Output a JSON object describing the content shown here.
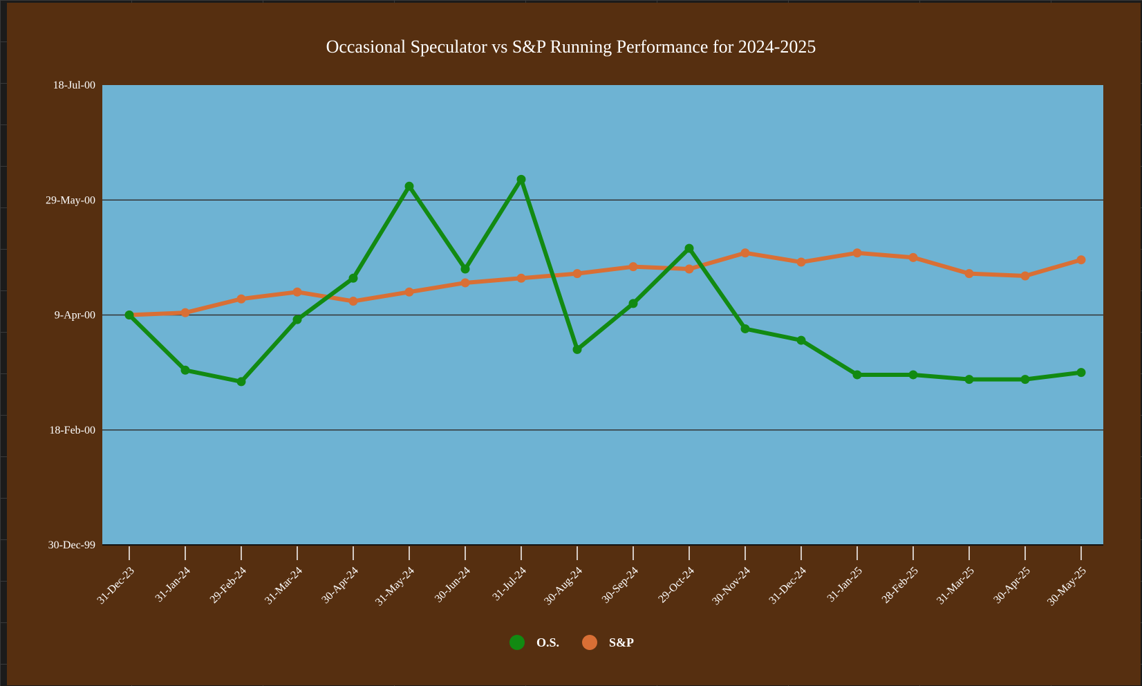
{
  "chart_data": {
    "type": "line",
    "title": "Occasional Speculator  vs S&P Running Performance for 2024-2025",
    "xlabel": "",
    "ylabel": "",
    "categories": [
      "31-Dec-23",
      "31-Jan-24",
      "29-Feb-24",
      "31-Mar-24",
      "30-Apr-24",
      "31-May-24",
      "30-Jun-24",
      "31-Jul-24",
      "30-Aug-24",
      "30-Sep-24",
      "29-Oct-24",
      "30-Nov-24",
      "31-Dec-24",
      "31-Jan-25",
      "28-Feb-25",
      "31-Mar-25",
      "30-Apr-25",
      "30-May-25"
    ],
    "ylim": [
      0,
      200
    ],
    "yticks": [
      {
        "value": 0,
        "label": "30-Dec-99"
      },
      {
        "value": 50,
        "label": "18-Feb-00"
      },
      {
        "value": 100,
        "label": "9-Apr-00"
      },
      {
        "value": 150,
        "label": "29-May-00"
      },
      {
        "value": 200,
        "label": "18-Jul-00"
      }
    ],
    "grid": true,
    "legend_position": "bottom-center",
    "plot_background": "#6eb3d3",
    "series": [
      {
        "name": "O.S.",
        "color": "#128a12",
        "values": [
          100,
          76,
          71,
          98,
          116,
          156,
          120,
          159,
          85,
          105,
          129,
          94,
          89,
          74,
          74,
          72,
          72,
          75
        ]
      },
      {
        "name": "S&P",
        "color": "#d96f35",
        "values": [
          100,
          101,
          107,
          110,
          106,
          110,
          114,
          116,
          118,
          121,
          120,
          127,
          123,
          127,
          125,
          118,
          117,
          124
        ]
      }
    ]
  }
}
